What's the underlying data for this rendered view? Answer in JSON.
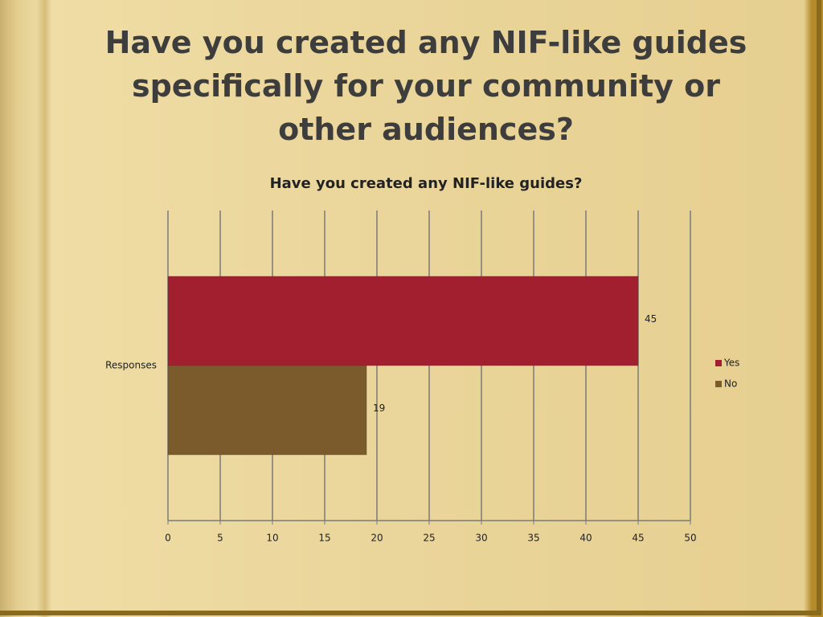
{
  "slide": {
    "title": "Have you created any NIF-like guides specifically for your community or other audiences?"
  },
  "chart_data": {
    "type": "hbar",
    "title": "Have you created any NIF-like guides?",
    "categories": [
      "Responses"
    ],
    "series": [
      {
        "name": "Yes",
        "color": "#a11f2e",
        "values": [
          45
        ]
      },
      {
        "name": "No",
        "color": "#7b5a2c",
        "values": [
          19
        ]
      }
    ],
    "xlim": [
      0,
      50
    ],
    "xticks": [
      0,
      5,
      10,
      15,
      20,
      25,
      30,
      35,
      40,
      45,
      50
    ],
    "grid": true,
    "legend": "right"
  }
}
